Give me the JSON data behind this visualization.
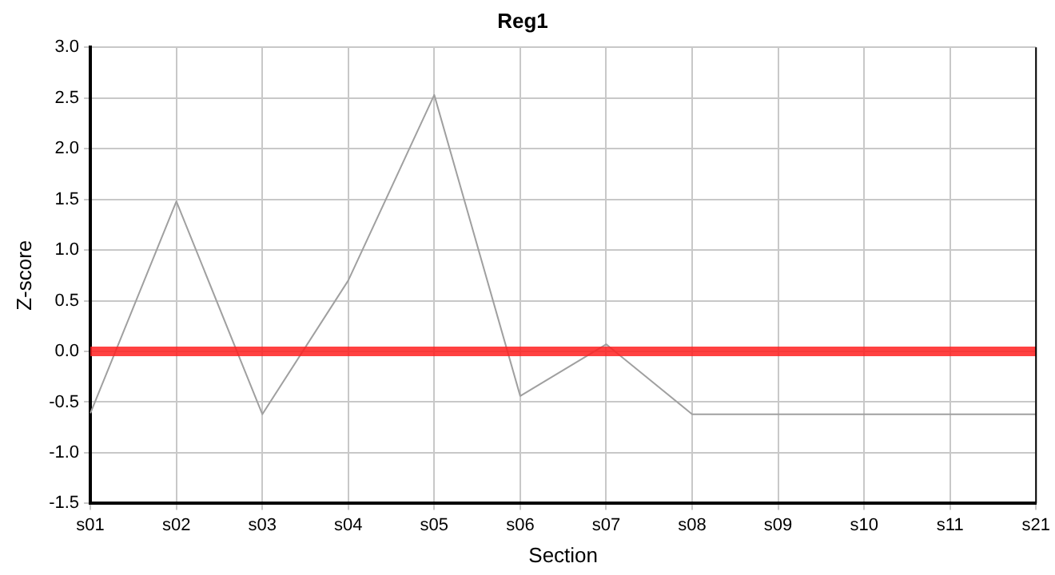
{
  "chart_data": {
    "type": "line",
    "title": "Reg1",
    "xlabel": "Section",
    "ylabel": "Z-score",
    "categories": [
      "s01",
      "s02",
      "s03",
      "s04",
      "s05",
      "s06",
      "s07",
      "s08",
      "s09",
      "s10",
      "s11",
      "s21"
    ],
    "series": [
      {
        "color": "#a0a0a0",
        "values": [
          -0.61,
          1.48,
          -0.62,
          0.7,
          2.53,
          -0.44,
          0.07,
          -0.62,
          -0.62,
          -0.62,
          -0.62,
          -0.62
        ]
      }
    ],
    "ylim": [
      -1.5,
      3.0
    ],
    "yticks": [
      {
        "value": -1.5,
        "label": "-1.5"
      },
      {
        "value": -1.0,
        "label": "-1.0"
      },
      {
        "value": -0.5,
        "label": "-0.5"
      },
      {
        "value": 0,
        "label": "0.0"
      },
      {
        "value": 0.5,
        "label": "0.5"
      },
      {
        "value": 1.0,
        "label": "1.0"
      },
      {
        "value": 1.5,
        "label": "1.5"
      },
      {
        "value": 2.0,
        "label": "2.0"
      },
      {
        "value": 2.5,
        "label": "2.5"
      },
      {
        "value": 3.0,
        "label": "3.0"
      }
    ],
    "ref_lines": [
      {
        "axis": "y",
        "value": 0,
        "color": "#ff2020"
      }
    ],
    "grid": true,
    "legend": false,
    "marker": "none",
    "line_style": "solid"
  }
}
